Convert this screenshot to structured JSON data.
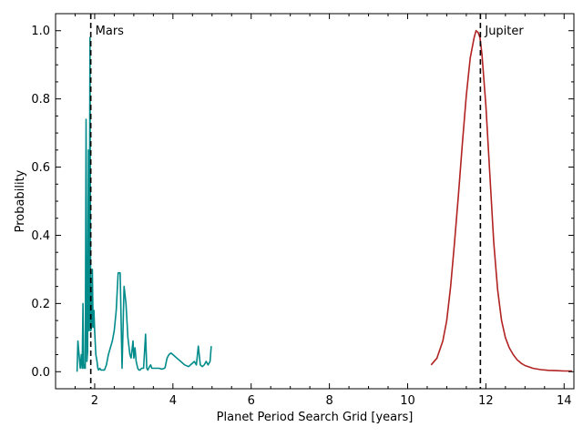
{
  "chart_data": {
    "type": "line",
    "xlabel": "Planet Period Search Grid [years]",
    "ylabel": "Probability",
    "xlim": [
      1.0,
      14.25
    ],
    "ylim": [
      -0.05,
      1.05
    ],
    "x_ticks": [
      2,
      4,
      6,
      8,
      10,
      12,
      14
    ],
    "y_ticks": [
      0.0,
      0.2,
      0.4,
      0.6,
      0.8,
      1.0
    ],
    "x_tick_labels": [
      "2",
      "4",
      "6",
      "8",
      "10",
      "12",
      "14"
    ],
    "y_tick_labels": [
      "0.0",
      "0.2",
      "0.4",
      "0.6",
      "0.8",
      "1.0"
    ],
    "grid": false,
    "series": [
      {
        "color": "#008b8b",
        "x": [
          1.55,
          1.57,
          1.6,
          1.63,
          1.66,
          1.68,
          1.7,
          1.72,
          1.74,
          1.76,
          1.78,
          1.8,
          1.82,
          1.84,
          1.86,
          1.88,
          1.9,
          1.92,
          1.94,
          1.96,
          1.98,
          2.0,
          2.03,
          2.06,
          2.08,
          2.1,
          2.13,
          2.16,
          2.2,
          2.25,
          2.3,
          2.35,
          2.4,
          2.45,
          2.5,
          2.55,
          2.6,
          2.65,
          2.7,
          2.75,
          2.8,
          2.85,
          2.9,
          2.93,
          2.96,
          2.98,
          3.0,
          3.03,
          3.06,
          3.1,
          3.13,
          3.16,
          3.2,
          3.25,
          3.3,
          3.33,
          3.36,
          3.38,
          3.4,
          3.43,
          3.46,
          3.5,
          3.55,
          3.6,
          3.65,
          3.7,
          3.73,
          3.76,
          3.78,
          3.8,
          3.85,
          3.9,
          3.95,
          4.0,
          4.1,
          4.2,
          4.3,
          4.4,
          4.5,
          4.55,
          4.6,
          4.65,
          4.7,
          4.75,
          4.8,
          4.85,
          4.9,
          4.95,
          4.98
        ],
        "y": [
          0.0,
          0.09,
          0.05,
          0.01,
          0.05,
          0.01,
          0.2,
          0.01,
          0.02,
          0.01,
          0.74,
          0.03,
          0.06,
          0.65,
          0.12,
          0.98,
          0.12,
          0.13,
          0.3,
          0.13,
          0.18,
          0.12,
          0.05,
          0.03,
          0.01,
          0.005,
          0.01,
          0.005,
          0.005,
          0.005,
          0.02,
          0.05,
          0.07,
          0.09,
          0.12,
          0.18,
          0.29,
          0.29,
          0.01,
          0.25,
          0.2,
          0.1,
          0.05,
          0.04,
          0.07,
          0.09,
          0.04,
          0.07,
          0.03,
          0.01,
          0.005,
          0.005,
          0.01,
          0.01,
          0.11,
          0.01,
          0.005,
          0.01,
          0.015,
          0.02,
          0.01,
          0.01,
          0.01,
          0.01,
          0.01,
          0.008,
          0.008,
          0.009,
          0.01,
          0.012,
          0.04,
          0.05,
          0.055,
          0.05,
          0.04,
          0.03,
          0.02,
          0.015,
          0.025,
          0.03,
          0.02,
          0.075,
          0.02,
          0.015,
          0.02,
          0.03,
          0.02,
          0.03,
          0.075
        ]
      },
      {
        "color": "#b22222",
        "x": [
          10.6,
          10.75,
          10.9,
          11.0,
          11.1,
          11.2,
          11.3,
          11.4,
          11.5,
          11.6,
          11.7,
          11.75,
          11.8,
          11.85,
          11.9,
          12.0,
          12.1,
          12.2,
          12.3,
          12.4,
          12.5,
          12.6,
          12.7,
          12.8,
          12.9,
          13.0,
          13.2,
          13.4,
          13.6,
          13.8,
          14.0,
          14.2
        ],
        "y": [
          0.02,
          0.04,
          0.09,
          0.15,
          0.25,
          0.38,
          0.52,
          0.67,
          0.81,
          0.92,
          0.98,
          1.0,
          0.995,
          0.98,
          0.93,
          0.78,
          0.58,
          0.38,
          0.24,
          0.15,
          0.1,
          0.07,
          0.05,
          0.035,
          0.025,
          0.018,
          0.01,
          0.006,
          0.004,
          0.003,
          0.002,
          0.002
        ]
      }
    ],
    "vlines": [
      {
        "x": 1.9,
        "label": "Mars",
        "label_y": 1.0
      },
      {
        "x": 11.86,
        "label": "Jupiter",
        "label_y": 1.0
      }
    ]
  }
}
